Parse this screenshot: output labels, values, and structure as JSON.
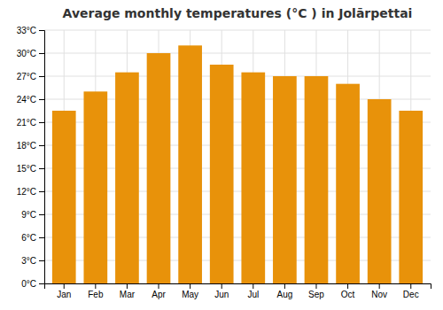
{
  "chart_data": {
    "type": "bar",
    "title": "Average monthly temperatures (°C ) in Jolārpettai",
    "categories": [
      "Jan",
      "Feb",
      "Mar",
      "Apr",
      "May",
      "Jun",
      "Jul",
      "Aug",
      "Sep",
      "Oct",
      "Nov",
      "Dec"
    ],
    "values": [
      22.5,
      25.0,
      27.5,
      30.0,
      31.0,
      28.5,
      27.5,
      27.0,
      27.0,
      26.0,
      24.0,
      22.5
    ],
    "color": "#E8920A",
    "ylim": [
      0,
      33
    ],
    "yticks": [
      {
        "value": 0,
        "label": "0°C"
      },
      {
        "value": 3,
        "label": "3°C"
      },
      {
        "value": 6,
        "label": "6°C"
      },
      {
        "value": 9,
        "label": "9°C"
      },
      {
        "value": 12,
        "label": "12°C"
      },
      {
        "value": 15,
        "label": "15°C"
      },
      {
        "value": 18,
        "label": "18°C"
      },
      {
        "value": 21,
        "label": "21°C"
      },
      {
        "value": 24,
        "label": "24°C"
      },
      {
        "value": 27,
        "label": "27°C"
      },
      {
        "value": 30,
        "label": "30°C"
      },
      {
        "value": 33,
        "label": "33°C"
      }
    ],
    "grid": true
  }
}
